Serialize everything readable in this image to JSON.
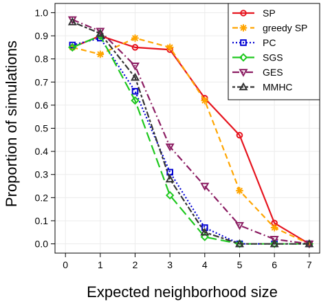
{
  "chart_data": {
    "type": "line",
    "title": "",
    "xlabel": "Expected neighborhood size",
    "ylabel": "Proportion of simulations",
    "xlim": [
      -0.3,
      7.3
    ],
    "ylim": [
      -0.04,
      1.04
    ],
    "x_ticks": [
      "0",
      "1",
      "2",
      "3",
      "4",
      "5",
      "6",
      "7"
    ],
    "y_ticks": [
      "0.0",
      "0.1",
      "0.2",
      "0.3",
      "0.4",
      "0.5",
      "0.6",
      "0.7",
      "0.8",
      "0.9",
      "1.0"
    ],
    "grid": true,
    "legend_position": "top-right",
    "series": [
      {
        "name": "SP",
        "color": "#e6141e",
        "dash": "solid",
        "marker": "circle",
        "x": [
          0.2,
          1,
          2,
          3,
          4,
          5,
          6,
          7
        ],
        "y": [
          0.85,
          0.9,
          0.85,
          0.84,
          0.63,
          0.47,
          0.09,
          0.0
        ]
      },
      {
        "name": "greedy SP",
        "color": "#ffa500",
        "dash": "dashed",
        "marker": "asterisk",
        "x": [
          0.2,
          1,
          2,
          3,
          4,
          5,
          6,
          7
        ],
        "y": [
          0.85,
          0.82,
          0.89,
          0.85,
          0.62,
          0.23,
          0.07,
          0.0
        ]
      },
      {
        "name": "PC",
        "color": "#0000d2",
        "dash": "dotted",
        "marker": "square",
        "x": [
          0.2,
          1,
          2,
          3,
          4,
          5,
          6,
          7
        ],
        "y": [
          0.86,
          0.89,
          0.66,
          0.31,
          0.07,
          0.0,
          0.0,
          0.0
        ]
      },
      {
        "name": "SGS",
        "color": "#1ec81e",
        "dash": "longdash",
        "marker": "diamond",
        "x": [
          0.2,
          1,
          2,
          3,
          4,
          5,
          6,
          7
        ],
        "y": [
          0.85,
          0.9,
          0.62,
          0.21,
          0.03,
          0.0,
          0.0,
          0.0
        ]
      },
      {
        "name": "GES",
        "color": "#8b1c62",
        "dash": "dashdot",
        "marker": "triangle-down",
        "x": [
          0.2,
          1,
          2,
          3,
          4,
          5,
          6,
          7
        ],
        "y": [
          0.97,
          0.92,
          0.77,
          0.42,
          0.25,
          0.08,
          0.02,
          0.0
        ]
      },
      {
        "name": "MMHC",
        "color": "#333333",
        "dash": "twodash",
        "marker": "triangle-up",
        "x": [
          0.2,
          1,
          2,
          3,
          4,
          5,
          6,
          7
        ],
        "y": [
          0.96,
          0.91,
          0.72,
          0.28,
          0.05,
          0.0,
          0.0,
          0.0
        ]
      }
    ]
  }
}
